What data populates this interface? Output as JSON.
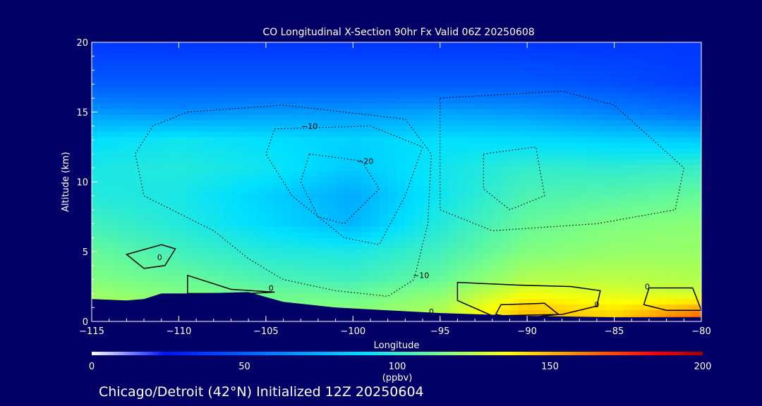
{
  "chart_data": {
    "type": "heatmap",
    "title": "CO Longitudinal X-Section 90hr  Fx Valid 06Z 20250608",
    "xlabel": "Longitude",
    "ylabel": "Altitude (km)",
    "xlim": [
      -115,
      -80
    ],
    "ylim": [
      0,
      20
    ],
    "x_ticks": [
      -115,
      -110,
      -105,
      -100,
      -95,
      -90,
      -85,
      -80
    ],
    "y_ticks": [
      0,
      5,
      10,
      15,
      20
    ],
    "x_tick_labels": [
      "−115",
      "−110",
      "−105",
      "−100",
      "−95",
      "−90",
      "−85",
      "−80"
    ],
    "y_tick_labels": [
      "0",
      "5",
      "10",
      "15",
      "20"
    ],
    "colorbar": {
      "min": 0,
      "max": 200,
      "ticks": [
        0,
        50,
        100,
        150,
        200
      ],
      "tick_labels": [
        "0",
        "50",
        "100",
        "150",
        "200"
      ],
      "unit_label": "(ppbv)",
      "colors": [
        "#000066",
        "#0000ff",
        "#00a0ff",
        "#00e0ff",
        "#80ff80",
        "#ffff00",
        "#ff8000",
        "#ff0000",
        "#800000"
      ]
    },
    "field": {
      "description_rows_altitude_km": [
        20,
        17,
        15,
        13,
        11,
        9,
        7,
        5,
        3,
        2,
        1,
        0.3
      ],
      "columns_longitude": [
        -115,
        -110,
        -105,
        -100,
        -95,
        -90,
        -85,
        -80
      ],
      "values_ppbv": [
        [
          35,
          35,
          35,
          35,
          35,
          35,
          35,
          35
        ],
        [
          45,
          45,
          45,
          45,
          45,
          45,
          42,
          38
        ],
        [
          60,
          58,
          60,
          60,
          62,
          60,
          55,
          50
        ],
        [
          75,
          78,
          75,
          72,
          75,
          74,
          72,
          70
        ],
        [
          80,
          82,
          78,
          70,
          78,
          85,
          84,
          86
        ],
        [
          82,
          80,
          72,
          64,
          78,
          90,
          92,
          95
        ],
        [
          88,
          82,
          74,
          66,
          82,
          95,
          100,
          102
        ],
        [
          95,
          88,
          82,
          80,
          88,
          100,
          104,
          105
        ],
        [
          100,
          96,
          90,
          88,
          95,
          110,
          112,
          110
        ],
        [
          105,
          100,
          96,
          95,
          102,
          122,
          118,
          115
        ],
        [
          110,
          106,
          100,
          100,
          108,
          135,
          128,
          140
        ],
        [
          112,
          108,
          104,
          104,
          112,
          140,
          135,
          160
        ]
      ]
    },
    "terrain": {
      "lon": [
        -115,
        -113,
        -112,
        -111,
        -109,
        -106,
        -104,
        -101,
        -98,
        -95,
        -90,
        -85,
        -80
      ],
      "alt_km": [
        1.6,
        1.5,
        1.6,
        2.0,
        2.0,
        2.1,
        1.4,
        1.0,
        0.8,
        0.6,
        0.4,
        0.3,
        0.3
      ]
    },
    "contour_labels": [
      {
        "text": "−10",
        "lon": -102.5,
        "alt": 13.8
      },
      {
        "text": "−20",
        "lon": -99.3,
        "alt": 11.3
      },
      {
        "text": "0",
        "lon": -111.1,
        "alt": 4.4
      },
      {
        "text": "0",
        "lon": -104.7,
        "alt": 2.2
      },
      {
        "text": "−10",
        "lon": -96.1,
        "alt": 3.1
      },
      {
        "text": "0",
        "lon": -95.5,
        "alt": 0.5
      },
      {
        "text": "0",
        "lon": -86.0,
        "alt": 1.0
      },
      {
        "text": "0",
        "lon": -83.1,
        "alt": 2.3
      }
    ]
  },
  "footer": {
    "caption": "Chicago/Detroit (42°N) Initialized 12Z 20250604"
  }
}
